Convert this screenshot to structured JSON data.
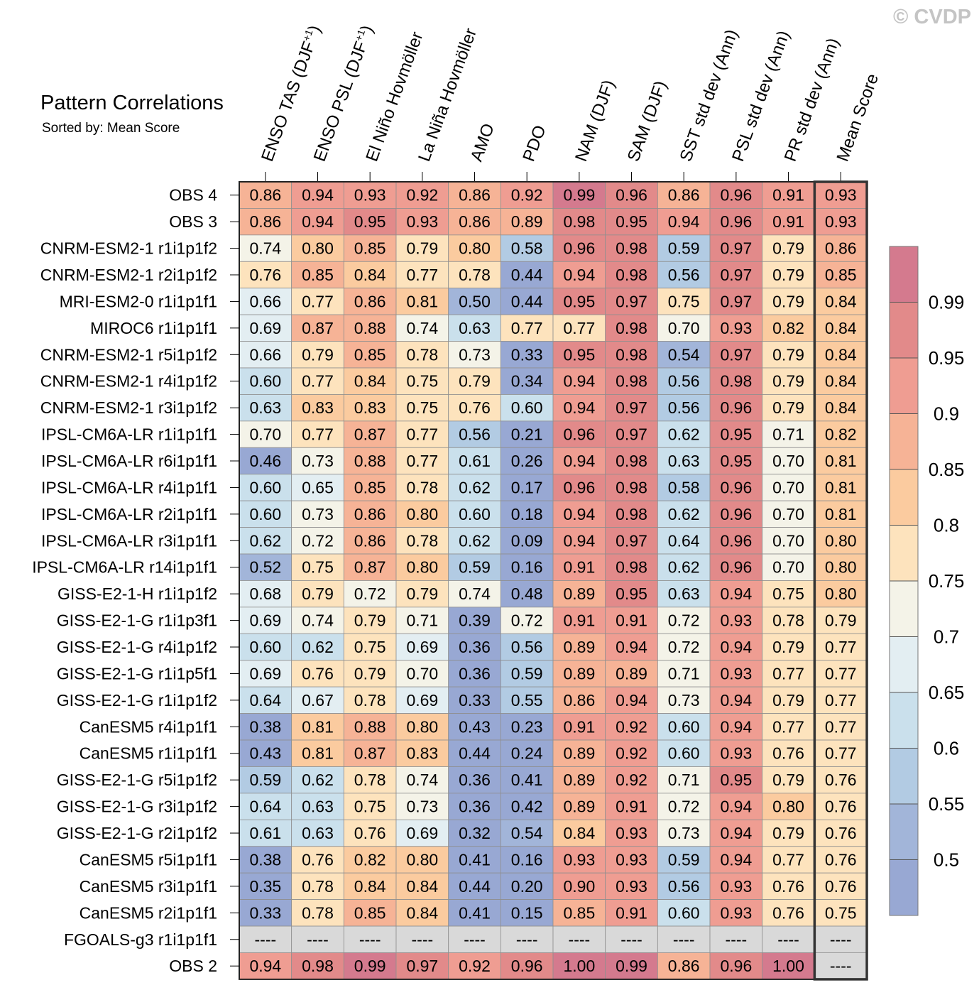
{
  "watermark": "© CVDP",
  "chart_data": {
    "type": "heatmap",
    "title": "Pattern Correlations",
    "subtitle": "Sorted by: Mean Score",
    "columns": [
      "ENSO TAS (DJF+1)",
      "ENSO PSL (DJF+1)",
      "El Niño Hovmöller",
      "La Niña Hovmöller",
      "AMO",
      "PDO",
      "NAM (DJF)",
      "SAM (DJF)",
      "SST std dev (Ann)",
      "PSL std dev (Ann)",
      "PR std dev (Ann)",
      "Mean Score"
    ],
    "column_labels": [
      {
        "text": "ENSO TAS (DJF",
        "sup": "+1",
        "close": ")"
      },
      {
        "text": "ENSO PSL (DJF",
        "sup": "+1",
        "close": ")"
      },
      {
        "text": "El Niño Hovmöller"
      },
      {
        "text": "La Niña Hovmöller"
      },
      {
        "text": "AMO"
      },
      {
        "text": "PDO"
      },
      {
        "text": "NAM (DJF)"
      },
      {
        "text": "SAM (DJF)"
      },
      {
        "text": "SST std dev (Ann)"
      },
      {
        "text": "PSL std dev (Ann)"
      },
      {
        "text": "PR std dev (Ann)"
      },
      {
        "text": "Mean Score"
      }
    ],
    "rows": [
      "OBS 4",
      "OBS 3",
      "CNRM-ESM2-1 r1i1p1f2",
      "CNRM-ESM2-1 r2i1p1f2",
      "MRI-ESM2-0 r1i1p1f1",
      "MIROC6 r1i1p1f1",
      "CNRM-ESM2-1 r5i1p1f2",
      "CNRM-ESM2-1 r4i1p1f2",
      "CNRM-ESM2-1 r3i1p1f2",
      "IPSL-CM6A-LR r1i1p1f1",
      "IPSL-CM6A-LR r6i1p1f1",
      "IPSL-CM6A-LR r4i1p1f1",
      "IPSL-CM6A-LR r2i1p1f1",
      "IPSL-CM6A-LR r3i1p1f1",
      "IPSL-CM6A-LR r14i1p1f1",
      "GISS-E2-1-H r1i1p1f2",
      "GISS-E2-1-G r1i1p3f1",
      "GISS-E2-1-G r4i1p1f2",
      "GISS-E2-1-G r1i1p5f1",
      "GISS-E2-1-G r1i1p1f2",
      "CanESM5 r4i1p1f1",
      "CanESM5 r1i1p1f1",
      "GISS-E2-1-G r5i1p1f2",
      "GISS-E2-1-G r3i1p1f2",
      "GISS-E2-1-G r2i1p1f2",
      "CanESM5 r5i1p1f1",
      "CanESM5 r3i1p1f1",
      "CanESM5 r2i1p1f1",
      "FGOALS-g3 r1i1p1f1",
      "OBS 2"
    ],
    "values": [
      [
        "0.86",
        "0.94",
        "0.93",
        "0.92",
        "0.86",
        "0.92",
        "0.99",
        "0.96",
        "0.86",
        "0.96",
        "0.91",
        "0.93"
      ],
      [
        "0.86",
        "0.94",
        "0.95",
        "0.93",
        "0.86",
        "0.89",
        "0.98",
        "0.95",
        "0.94",
        "0.96",
        "0.91",
        "0.93"
      ],
      [
        "0.74",
        "0.80",
        "0.85",
        "0.79",
        "0.80",
        "0.58",
        "0.96",
        "0.98",
        "0.59",
        "0.97",
        "0.79",
        "0.86"
      ],
      [
        "0.76",
        "0.85",
        "0.84",
        "0.77",
        "0.78",
        "0.44",
        "0.94",
        "0.98",
        "0.56",
        "0.97",
        "0.79",
        "0.85"
      ],
      [
        "0.66",
        "0.77",
        "0.86",
        "0.81",
        "0.50",
        "0.44",
        "0.95",
        "0.97",
        "0.75",
        "0.97",
        "0.79",
        "0.84"
      ],
      [
        "0.69",
        "0.87",
        "0.88",
        "0.74",
        "0.63",
        "0.77",
        "0.77",
        "0.98",
        "0.70",
        "0.93",
        "0.82",
        "0.84"
      ],
      [
        "0.66",
        "0.79",
        "0.85",
        "0.78",
        "0.73",
        "0.33",
        "0.95",
        "0.98",
        "0.54",
        "0.97",
        "0.79",
        "0.84"
      ],
      [
        "0.60",
        "0.77",
        "0.84",
        "0.75",
        "0.79",
        "0.34",
        "0.94",
        "0.98",
        "0.56",
        "0.98",
        "0.79",
        "0.84"
      ],
      [
        "0.63",
        "0.83",
        "0.83",
        "0.75",
        "0.76",
        "0.60",
        "0.94",
        "0.97",
        "0.56",
        "0.96",
        "0.79",
        "0.84"
      ],
      [
        "0.70",
        "0.77",
        "0.87",
        "0.77",
        "0.56",
        "0.21",
        "0.96",
        "0.97",
        "0.62",
        "0.95",
        "0.71",
        "0.82"
      ],
      [
        "0.46",
        "0.73",
        "0.88",
        "0.77",
        "0.61",
        "0.26",
        "0.94",
        "0.98",
        "0.63",
        "0.95",
        "0.70",
        "0.81"
      ],
      [
        "0.60",
        "0.65",
        "0.85",
        "0.78",
        "0.62",
        "0.17",
        "0.96",
        "0.98",
        "0.58",
        "0.96",
        "0.70",
        "0.81"
      ],
      [
        "0.60",
        "0.73",
        "0.86",
        "0.80",
        "0.60",
        "0.18",
        "0.94",
        "0.98",
        "0.62",
        "0.96",
        "0.70",
        "0.81"
      ],
      [
        "0.62",
        "0.72",
        "0.86",
        "0.78",
        "0.62",
        "0.09",
        "0.94",
        "0.97",
        "0.64",
        "0.96",
        "0.70",
        "0.80"
      ],
      [
        "0.52",
        "0.75",
        "0.87",
        "0.80",
        "0.59",
        "0.16",
        "0.91",
        "0.98",
        "0.62",
        "0.96",
        "0.70",
        "0.80"
      ],
      [
        "0.68",
        "0.79",
        "0.72",
        "0.79",
        "0.74",
        "0.48",
        "0.89",
        "0.95",
        "0.63",
        "0.94",
        "0.75",
        "0.80"
      ],
      [
        "0.69",
        "0.74",
        "0.79",
        "0.71",
        "0.39",
        "0.72",
        "0.91",
        "0.91",
        "0.72",
        "0.93",
        "0.78",
        "0.79"
      ],
      [
        "0.60",
        "0.62",
        "0.75",
        "0.69",
        "0.36",
        "0.56",
        "0.89",
        "0.94",
        "0.72",
        "0.94",
        "0.79",
        "0.77"
      ],
      [
        "0.69",
        "0.76",
        "0.79",
        "0.70",
        "0.36",
        "0.59",
        "0.89",
        "0.89",
        "0.71",
        "0.93",
        "0.77",
        "0.77"
      ],
      [
        "0.64",
        "0.67",
        "0.78",
        "0.69",
        "0.33",
        "0.55",
        "0.86",
        "0.94",
        "0.73",
        "0.94",
        "0.79",
        "0.77"
      ],
      [
        "0.38",
        "0.81",
        "0.88",
        "0.80",
        "0.43",
        "0.23",
        "0.91",
        "0.92",
        "0.60",
        "0.94",
        "0.77",
        "0.77"
      ],
      [
        "0.43",
        "0.81",
        "0.87",
        "0.83",
        "0.44",
        "0.24",
        "0.89",
        "0.92",
        "0.60",
        "0.93",
        "0.76",
        "0.77"
      ],
      [
        "0.59",
        "0.62",
        "0.78",
        "0.74",
        "0.36",
        "0.41",
        "0.89",
        "0.92",
        "0.71",
        "0.95",
        "0.79",
        "0.76"
      ],
      [
        "0.64",
        "0.63",
        "0.75",
        "0.73",
        "0.36",
        "0.42",
        "0.89",
        "0.91",
        "0.72",
        "0.94",
        "0.80",
        "0.76"
      ],
      [
        "0.61",
        "0.63",
        "0.76",
        "0.69",
        "0.32",
        "0.54",
        "0.84",
        "0.93",
        "0.73",
        "0.94",
        "0.79",
        "0.76"
      ],
      [
        "0.38",
        "0.76",
        "0.82",
        "0.80",
        "0.41",
        "0.16",
        "0.93",
        "0.93",
        "0.59",
        "0.94",
        "0.77",
        "0.76"
      ],
      [
        "0.35",
        "0.78",
        "0.84",
        "0.84",
        "0.44",
        "0.20",
        "0.90",
        "0.93",
        "0.56",
        "0.93",
        "0.76",
        "0.76"
      ],
      [
        "0.33",
        "0.78",
        "0.85",
        "0.84",
        "0.41",
        "0.15",
        "0.85",
        "0.91",
        "0.60",
        "0.93",
        "0.76",
        "0.75"
      ],
      [
        "----",
        "----",
        "----",
        "----",
        "----",
        "----",
        "----",
        "----",
        "----",
        "----",
        "----",
        "----"
      ],
      [
        "0.94",
        "0.98",
        "0.99",
        "0.97",
        "0.92",
        "0.96",
        "1.00",
        "0.99",
        "0.86",
        "0.96",
        "1.00",
        "----"
      ]
    ],
    "missing_color": "#d9d9d9",
    "colorbar": {
      "tick_labels": [
        "0.99",
        "0.95",
        "0.9",
        "0.85",
        "0.8",
        "0.75",
        "0.7",
        "0.65",
        "0.6",
        "0.55",
        "0.5"
      ],
      "levels": [
        0.99,
        0.95,
        0.9,
        0.85,
        0.8,
        0.75,
        0.7,
        0.65,
        0.6,
        0.55,
        0.5
      ],
      "colors_top_to_bottom": [
        "#d47a8e",
        "#e28a8a",
        "#ef9d92",
        "#f6b396",
        "#fbcb9f",
        "#fde3bd",
        "#f4f3e8",
        "#e3eef2",
        "#cae0ec",
        "#b2cbe3",
        "#a2b5d9",
        "#98a8d3"
      ]
    }
  }
}
